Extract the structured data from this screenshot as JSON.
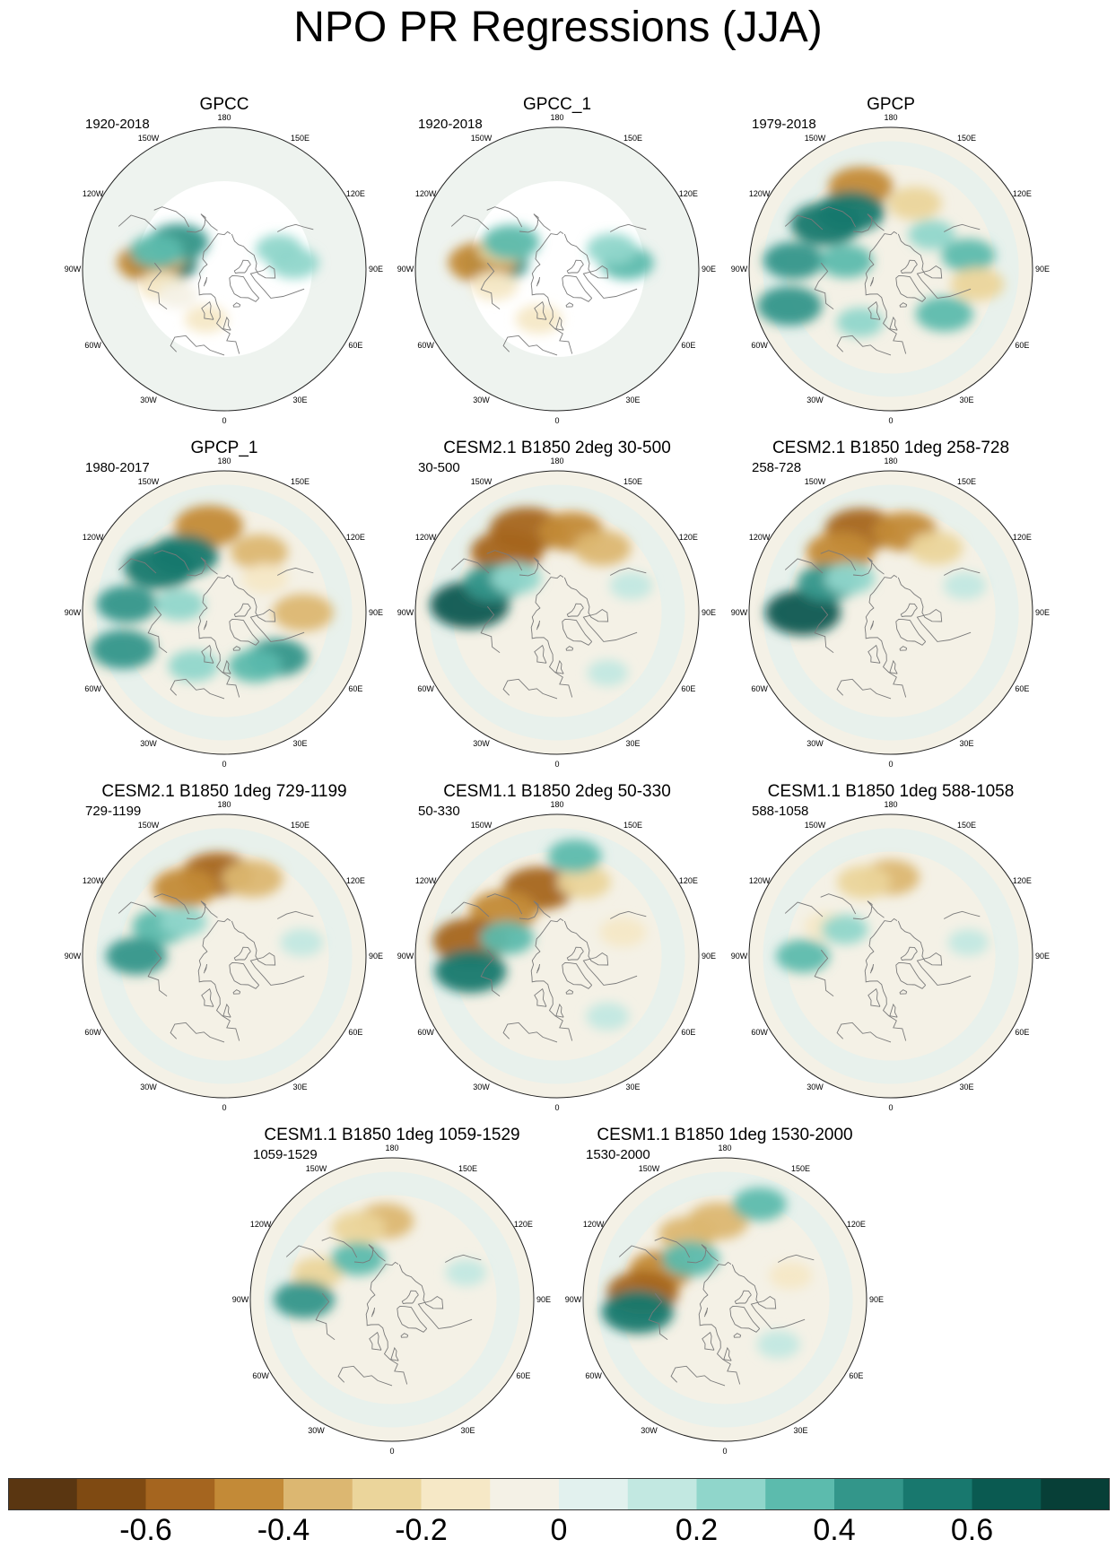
{
  "title": "NPO PR Regressions (JJA)",
  "longitude_labels": [
    "180",
    "150E",
    "120E",
    "90E",
    "60E",
    "30E",
    "0",
    "30W",
    "60W",
    "90W",
    "120W",
    "150W"
  ],
  "colorbar": {
    "colors": [
      "#5a3611",
      "#7f4a12",
      "#a5651f",
      "#c38a37",
      "#dcb771",
      "#ebd59b",
      "#f6e8c6",
      "#f4f1e6",
      "#e2f1ee",
      "#c2e8e1",
      "#90d6cb",
      "#5cbbad",
      "#33968a",
      "#18786e",
      "#0a5a51",
      "#073f37"
    ],
    "ticks": [
      "-0.6",
      "-0.4",
      "-0.2",
      "0",
      "0.2",
      "0.4",
      "0.6"
    ],
    "tick_values": [
      -0.6,
      -0.4,
      -0.2,
      0,
      0.2,
      0.4,
      0.6
    ],
    "levels": [
      -0.7,
      -0.6,
      -0.5,
      -0.4,
      -0.3,
      -0.2,
      -0.1,
      0,
      0.1,
      0.2,
      0.3,
      0.4,
      0.5,
      0.6,
      0.7
    ]
  },
  "panels": [
    {
      "name": "gpcc",
      "title": "GPCC",
      "period": "1920-2018",
      "observed_mask": true,
      "features": [
        {
          "lon": 95,
          "lat": 50,
          "value": 0.5
        },
        {
          "lon": 95,
          "lat": 42,
          "value": -0.45
        },
        {
          "lon": 110,
          "lat": 52,
          "value": -0.3
        },
        {
          "lon": 75,
          "lat": 48,
          "value": -0.2
        },
        {
          "lon": 120,
          "lat": 55,
          "value": 0.4
        },
        {
          "lon": 105,
          "lat": 45,
          "value": 0.3
        },
        {
          "lon": 265,
          "lat": 45,
          "value": 0.25
        },
        {
          "lon": 250,
          "lat": 52,
          "value": 0.2
        },
        {
          "lon": 20,
          "lat": 55,
          "value": -0.15
        },
        {
          "lon": 60,
          "lat": 55,
          "value": -0.1
        }
      ]
    },
    {
      "name": "gpcc-1",
      "title": "GPCC_1",
      "period": "1920-2018",
      "observed_mask": true,
      "features": [
        {
          "lon": 95,
          "lat": 50,
          "value": 0.45
        },
        {
          "lon": 95,
          "lat": 42,
          "value": -0.5
        },
        {
          "lon": 110,
          "lat": 52,
          "value": -0.25
        },
        {
          "lon": 75,
          "lat": 48,
          "value": -0.2
        },
        {
          "lon": 120,
          "lat": 55,
          "value": 0.35
        },
        {
          "lon": 265,
          "lat": 45,
          "value": 0.3
        },
        {
          "lon": 250,
          "lat": 52,
          "value": 0.25
        },
        {
          "lon": 20,
          "lat": 55,
          "value": -0.2
        }
      ]
    },
    {
      "name": "gpcp",
      "title": "GPCP",
      "period": "1979-2018",
      "observed_mask": false,
      "features": [
        {
          "lon": 160,
          "lat": 35,
          "value": -0.45
        },
        {
          "lon": 145,
          "lat": 45,
          "value": 0.5
        },
        {
          "lon": 125,
          "lat": 40,
          "value": 0.55
        },
        {
          "lon": 95,
          "lat": 30,
          "value": 0.4
        },
        {
          "lon": 70,
          "lat": 25,
          "value": 0.45
        },
        {
          "lon": 200,
          "lat": 45,
          "value": -0.3
        },
        {
          "lon": 260,
          "lat": 40,
          "value": 0.3
        },
        {
          "lon": 280,
          "lat": 35,
          "value": -0.3
        },
        {
          "lon": 310,
          "lat": 45,
          "value": 0.35
        },
        {
          "lon": 30,
          "lat": 50,
          "value": 0.2
        },
        {
          "lon": 100,
          "lat": 60,
          "value": 0.3
        },
        {
          "lon": 230,
          "lat": 55,
          "value": 0.2
        }
      ]
    },
    {
      "name": "gpcp-1",
      "title": "GPCP_1",
      "period": "1980-2017",
      "observed_mask": false,
      "features": [
        {
          "lon": 170,
          "lat": 35,
          "value": -0.5
        },
        {
          "lon": 145,
          "lat": 45,
          "value": 0.5
        },
        {
          "lon": 125,
          "lat": 40,
          "value": 0.55
        },
        {
          "lon": 95,
          "lat": 30,
          "value": 0.4
        },
        {
          "lon": 70,
          "lat": 25,
          "value": 0.45
        },
        {
          "lon": 210,
          "lat": 45,
          "value": -0.35
        },
        {
          "lon": 270,
          "lat": 40,
          "value": -0.4
        },
        {
          "lon": 310,
          "lat": 45,
          "value": 0.4
        },
        {
          "lon": 330,
          "lat": 50,
          "value": 0.3
        },
        {
          "lon": 30,
          "lat": 50,
          "value": 0.25
        },
        {
          "lon": 100,
          "lat": 60,
          "value": 0.25
        },
        {
          "lon": 230,
          "lat": 55,
          "value": -0.2
        }
      ]
    },
    {
      "name": "cesm2-2deg-30-500",
      "title": "CESM2.1 B1850 2deg 30-500",
      "period": "30-500",
      "observed_mask": false,
      "features": [
        {
          "lon": 160,
          "lat": 35,
          "value": -0.6
        },
        {
          "lon": 190,
          "lat": 38,
          "value": -0.45
        },
        {
          "lon": 140,
          "lat": 40,
          "value": -0.55
        },
        {
          "lon": 215,
          "lat": 40,
          "value": -0.35
        },
        {
          "lon": 95,
          "lat": 35,
          "value": 0.65
        },
        {
          "lon": 115,
          "lat": 45,
          "value": 0.4
        },
        {
          "lon": 130,
          "lat": 55,
          "value": 0.25
        },
        {
          "lon": 250,
          "lat": 40,
          "value": 0.15
        },
        {
          "lon": 320,
          "lat": 40,
          "value": 0.12
        }
      ]
    },
    {
      "name": "cesm2-1deg-258-728",
      "title": "CESM2.1 B1850 1deg 258-728",
      "period": "258-728",
      "observed_mask": false,
      "features": [
        {
          "lon": 160,
          "lat": 35,
          "value": -0.55
        },
        {
          "lon": 190,
          "lat": 38,
          "value": -0.45
        },
        {
          "lon": 140,
          "lat": 40,
          "value": -0.5
        },
        {
          "lon": 215,
          "lat": 40,
          "value": -0.3
        },
        {
          "lon": 90,
          "lat": 35,
          "value": 0.6
        },
        {
          "lon": 115,
          "lat": 45,
          "value": 0.4
        },
        {
          "lon": 130,
          "lat": 55,
          "value": 0.25
        },
        {
          "lon": 250,
          "lat": 40,
          "value": 0.15
        }
      ]
    },
    {
      "name": "cesm2-1deg-729-1199",
      "title": "CESM2.1 B1850 1deg 729-1199",
      "period": "729-1199",
      "observed_mask": false,
      "features": [
        {
          "lon": 175,
          "lat": 38,
          "value": -0.55
        },
        {
          "lon": 150,
          "lat": 40,
          "value": -0.45
        },
        {
          "lon": 200,
          "lat": 38,
          "value": -0.4
        },
        {
          "lon": 115,
          "lat": 45,
          "value": 0.35
        },
        {
          "lon": 90,
          "lat": 35,
          "value": 0.4
        },
        {
          "lon": 130,
          "lat": 55,
          "value": 0.2
        },
        {
          "lon": 260,
          "lat": 40,
          "value": 0.15
        }
      ]
    },
    {
      "name": "cesm1-2deg-50-330",
      "title": "CESM1.1 B1850 2deg 50-330",
      "period": "50-330",
      "observed_mask": false,
      "features": [
        {
          "lon": 165,
          "lat": 45,
          "value": -0.55
        },
        {
          "lon": 130,
          "lat": 45,
          "value": -0.5
        },
        {
          "lon": 100,
          "lat": 35,
          "value": -0.6
        },
        {
          "lon": 80,
          "lat": 35,
          "value": 0.55
        },
        {
          "lon": 110,
          "lat": 55,
          "value": 0.3
        },
        {
          "lon": 200,
          "lat": 40,
          "value": -0.3
        },
        {
          "lon": 190,
          "lat": 28,
          "value": 0.3
        },
        {
          "lon": 250,
          "lat": 45,
          "value": -0.2
        },
        {
          "lon": 320,
          "lat": 40,
          "value": 0.15
        }
      ]
    },
    {
      "name": "cesm1-1deg-588-1058",
      "title": "CESM1.1 B1850 1deg 588-1058",
      "period": "588-1058",
      "observed_mask": false,
      "features": [
        {
          "lon": 180,
          "lat": 40,
          "value": -0.35
        },
        {
          "lon": 160,
          "lat": 40,
          "value": -0.3
        },
        {
          "lon": 115,
          "lat": 45,
          "value": -0.2
        },
        {
          "lon": 90,
          "lat": 35,
          "value": 0.3
        },
        {
          "lon": 120,
          "lat": 55,
          "value": 0.2
        },
        {
          "lon": 260,
          "lat": 40,
          "value": 0.12
        }
      ]
    },
    {
      "name": "cesm1-1deg-1059-1529",
      "title": "CESM1.1 B1850 1deg 1059-1529",
      "period": "1059-1529",
      "observed_mask": false,
      "features": [
        {
          "lon": 175,
          "lat": 40,
          "value": -0.35
        },
        {
          "lon": 155,
          "lat": 40,
          "value": -0.3
        },
        {
          "lon": 110,
          "lat": 40,
          "value": -0.25
        },
        {
          "lon": 90,
          "lat": 35,
          "value": 0.4
        },
        {
          "lon": 140,
          "lat": 55,
          "value": 0.3
        },
        {
          "lon": 250,
          "lat": 40,
          "value": 0.12
        }
      ]
    },
    {
      "name": "cesm1-1deg-1530-2000",
      "title": "CESM1.1 B1850 1deg 1530-2000",
      "period": "1530-2000",
      "observed_mask": false,
      "features": [
        {
          "lon": 175,
          "lat": 40,
          "value": -0.4
        },
        {
          "lon": 150,
          "lat": 42,
          "value": -0.35
        },
        {
          "lon": 115,
          "lat": 45,
          "value": -0.45
        },
        {
          "lon": 95,
          "lat": 38,
          "value": -0.55
        },
        {
          "lon": 82,
          "lat": 35,
          "value": 0.55
        },
        {
          "lon": 140,
          "lat": 55,
          "value": 0.35
        },
        {
          "lon": 200,
          "lat": 28,
          "value": 0.3
        },
        {
          "lon": 250,
          "lat": 45,
          "value": -0.15
        },
        {
          "lon": 310,
          "lat": 45,
          "value": 0.15
        }
      ]
    }
  ]
}
